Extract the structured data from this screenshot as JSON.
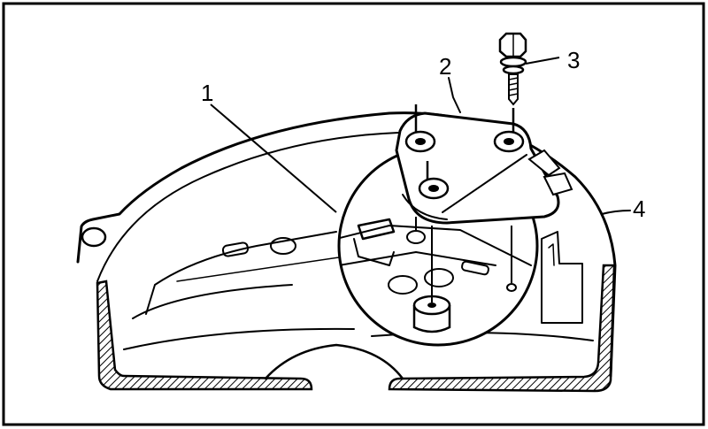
{
  "diagram": {
    "callouts": [
      {
        "id": "1",
        "label": "1"
      },
      {
        "id": "2",
        "label": "2"
      },
      {
        "id": "3",
        "label": "3"
      },
      {
        "id": "4",
        "label": "4"
      }
    ]
  }
}
